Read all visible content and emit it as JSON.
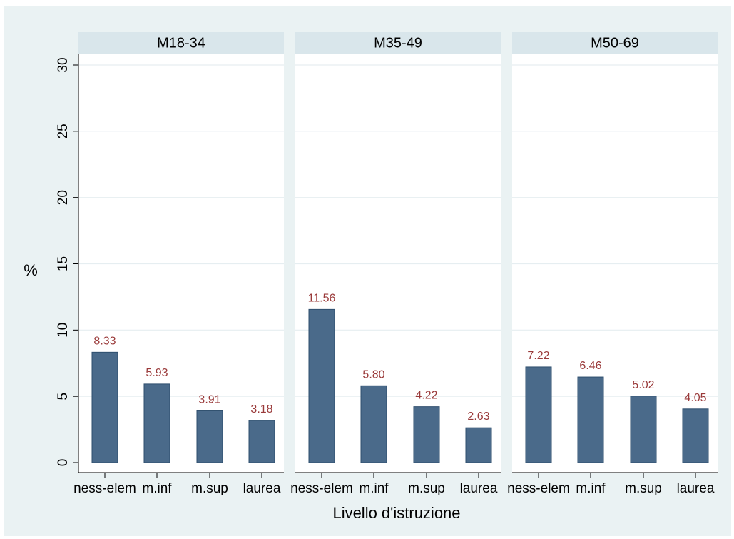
{
  "chart_data": {
    "type": "bar",
    "ylabel": "%",
    "xlabel": "Livello d'istruzione",
    "ylim": [
      0,
      30
    ],
    "yticks": [
      0,
      5,
      10,
      15,
      20,
      25,
      30
    ],
    "grid": true,
    "categories": [
      "ness-elem",
      "m.inf",
      "m.sup",
      "laurea"
    ],
    "panels": [
      {
        "title": "M18-34",
        "values": [
          8.33,
          5.93,
          3.91,
          3.18
        ],
        "labels": [
          "8.33",
          "5.93",
          "3.91",
          "3.18"
        ]
      },
      {
        "title": "M35-49",
        "values": [
          11.56,
          5.8,
          4.22,
          2.63
        ],
        "labels": [
          "11.56",
          "5.80",
          "4.22",
          "2.63"
        ]
      },
      {
        "title": "M50-69",
        "values": [
          7.22,
          6.46,
          5.02,
          4.05
        ],
        "labels": [
          "7.22",
          "6.46",
          "5.02",
          "4.05"
        ]
      }
    ],
    "colors": {
      "background": "#eaf2f3",
      "plot": "#ffffff",
      "header": "#d9e6eb",
      "bar": "#4a6a8a",
      "bar_edge": "#2f4f6e",
      "value_label": "#9a3a3a",
      "grid": "#e6eef1",
      "axis": "#000000"
    }
  }
}
